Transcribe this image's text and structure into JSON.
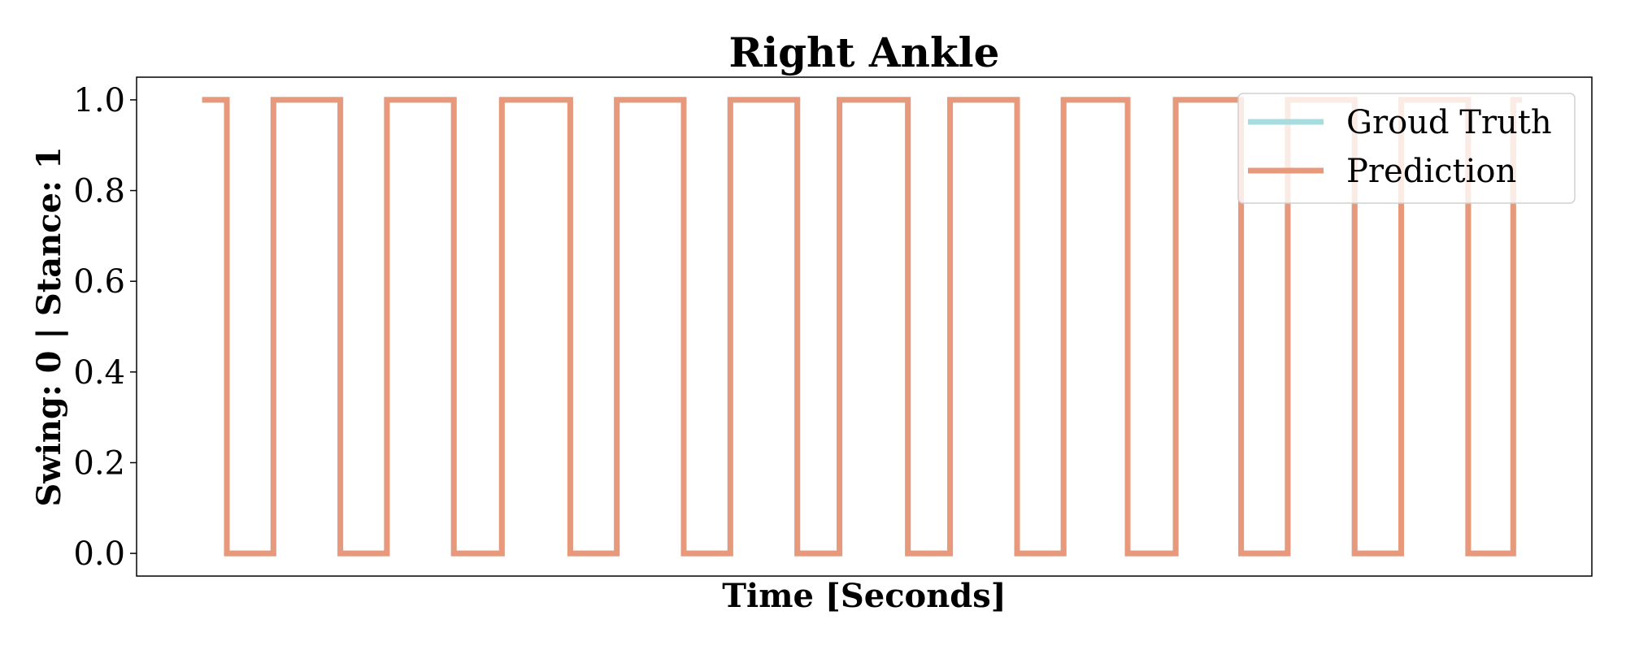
{
  "chart_data": {
    "type": "line",
    "title": "Right Ankle",
    "xlabel": "Time [Seconds]",
    "ylabel": "Swing: 0 | Stance: 1",
    "ylim": [
      -0.05,
      1.05
    ],
    "xlim": [
      0,
      100
    ],
    "yticks": [
      "0.0",
      "0.2",
      "0.4",
      "0.6",
      "0.8",
      "1.0"
    ],
    "x_ticks_shown": false,
    "grid": false,
    "legend": {
      "position": "top-right"
    },
    "series": [
      {
        "name": "Groud Truth",
        "color": "#a8dde0",
        "x": [
          4.5,
          6.2,
          6.2,
          9.4,
          9.4,
          14.0,
          14.0,
          17.2,
          17.2,
          21.8,
          21.8,
          25.1,
          25.1,
          29.8,
          29.8,
          33.0,
          33.0,
          37.6,
          37.6,
          40.8,
          40.8,
          45.4,
          45.4,
          48.3,
          48.3,
          53.0,
          53.0,
          55.9,
          55.9,
          60.5,
          60.5,
          63.7,
          63.7,
          68.1,
          68.1,
          71.4,
          71.4,
          75.9,
          75.9,
          79.1,
          79.1,
          83.7,
          83.7,
          86.9,
          86.9,
          91.5,
          91.5,
          94.6,
          94.6,
          95.2
        ],
        "values": [
          1,
          1,
          0,
          0,
          1,
          1,
          0,
          0,
          1,
          1,
          0,
          0,
          1,
          1,
          0,
          0,
          1,
          1,
          0,
          0,
          1,
          1,
          0,
          0,
          1,
          1,
          0,
          0,
          1,
          1,
          0,
          0,
          1,
          1,
          0,
          0,
          1,
          1,
          0,
          0,
          1,
          1,
          0,
          0,
          1,
          1,
          0,
          0,
          1,
          1
        ]
      },
      {
        "name": "Prediction",
        "color": "#e8997c",
        "x": [
          4.5,
          6.2,
          6.2,
          9.4,
          9.4,
          14.0,
          14.0,
          17.2,
          17.2,
          21.8,
          21.8,
          25.1,
          25.1,
          29.8,
          29.8,
          33.0,
          33.0,
          37.6,
          37.6,
          40.8,
          40.8,
          45.4,
          45.4,
          48.3,
          48.3,
          53.0,
          53.0,
          55.9,
          55.9,
          60.5,
          60.5,
          63.7,
          63.7,
          68.1,
          68.1,
          71.4,
          71.4,
          75.9,
          75.9,
          79.1,
          79.1,
          83.7,
          83.7,
          86.9,
          86.9,
          91.5,
          91.5,
          94.6,
          94.6,
          95.2
        ],
        "values": [
          1,
          1,
          0,
          0,
          1,
          1,
          0,
          0,
          1,
          1,
          0,
          0,
          1,
          1,
          0,
          0,
          1,
          1,
          0,
          0,
          1,
          1,
          0,
          0,
          1,
          1,
          0,
          0,
          1,
          1,
          0,
          0,
          1,
          1,
          0,
          0,
          1,
          1,
          0,
          0,
          1,
          1,
          0,
          0,
          1,
          1,
          0,
          0,
          1,
          1
        ]
      }
    ]
  }
}
